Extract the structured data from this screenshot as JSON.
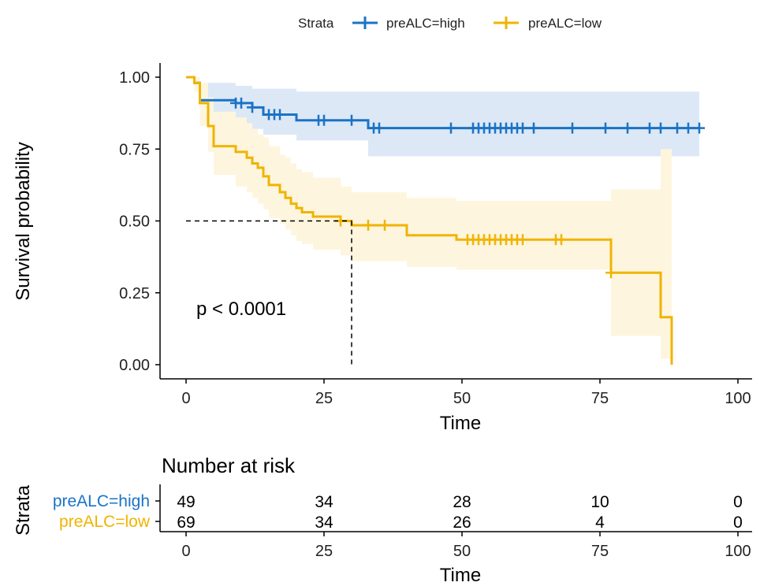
{
  "chart_data": {
    "type": "line",
    "subtype": "kaplan-meier",
    "title": "",
    "xlabel": "Time",
    "ylabel": "Survival probability",
    "xlim": [
      0,
      100
    ],
    "ylim": [
      0,
      1
    ],
    "x_ticks": [
      0,
      25,
      50,
      75,
      100
    ],
    "y_ticks": [
      0,
      0.25,
      0.5,
      0.75,
      1.0
    ],
    "y_tick_labels": [
      "0.00",
      "0.25",
      "0.50",
      "0.75",
      "1.00"
    ],
    "grid": false,
    "legend": {
      "title": "Strata",
      "placement": "top"
    },
    "annotation": "p < 0.0001",
    "median_line": {
      "y": 0.5,
      "x": 30
    },
    "series": [
      {
        "name": "preALC=high",
        "color": "#1a73c6",
        "band_color": "#dce8f6",
        "steps": [
          [
            0,
            1.0
          ],
          [
            1.5,
            0.98
          ],
          [
            2.5,
            0.92
          ],
          [
            9,
            0.91
          ],
          [
            12,
            0.895
          ],
          [
            14,
            0.87
          ],
          [
            20,
            0.85
          ],
          [
            33,
            0.823
          ],
          [
            93,
            0.823
          ]
        ],
        "ci_steps": [
          [
            0,
            1.0,
            1.0
          ],
          [
            1.5,
            1.0,
            0.95
          ],
          [
            2.5,
            0.98,
            0.85
          ],
          [
            9,
            0.97,
            0.83
          ],
          [
            12,
            0.96,
            0.82
          ],
          [
            14,
            0.96,
            0.8
          ],
          [
            20,
            0.95,
            0.78
          ],
          [
            33,
            0.95,
            0.725
          ],
          [
            93,
            0.95,
            0.725
          ]
        ],
        "censor_x": [
          9,
          10,
          12,
          15,
          16,
          17,
          24,
          25,
          30,
          34,
          35,
          48,
          52,
          53,
          54,
          55,
          56,
          57,
          58,
          59,
          60,
          61,
          63,
          70,
          76,
          80,
          84,
          86,
          89,
          91,
          93
        ]
      },
      {
        "name": "preALC=low",
        "color": "#f0b400",
        "band_color": "#fdf5de",
        "steps": [
          [
            0,
            1.0
          ],
          [
            1.5,
            0.98
          ],
          [
            2.5,
            0.91
          ],
          [
            4,
            0.83
          ],
          [
            5,
            0.76
          ],
          [
            9,
            0.74
          ],
          [
            11,
            0.72
          ],
          [
            12,
            0.7
          ],
          [
            13,
            0.685
          ],
          [
            14,
            0.655
          ],
          [
            15,
            0.625
          ],
          [
            17,
            0.6
          ],
          [
            18,
            0.58
          ],
          [
            19,
            0.56
          ],
          [
            20,
            0.545
          ],
          [
            21,
            0.53
          ],
          [
            23,
            0.515
          ],
          [
            28,
            0.5
          ],
          [
            30,
            0.485
          ],
          [
            40,
            0.45
          ],
          [
            49,
            0.435
          ],
          [
            77,
            0.32
          ],
          [
            86,
            0.165
          ],
          [
            88,
            0.0
          ]
        ],
        "ci_steps": [
          [
            0,
            1.0,
            1.0
          ],
          [
            1.5,
            1.0,
            0.95
          ],
          [
            2.5,
            0.98,
            0.83
          ],
          [
            4,
            0.93,
            0.74
          ],
          [
            5,
            0.88,
            0.66
          ],
          [
            9,
            0.86,
            0.62
          ],
          [
            11,
            0.84,
            0.6
          ],
          [
            12,
            0.82,
            0.58
          ],
          [
            13,
            0.8,
            0.56
          ],
          [
            14,
            0.79,
            0.54
          ],
          [
            15,
            0.76,
            0.51
          ],
          [
            17,
            0.73,
            0.49
          ],
          [
            18,
            0.72,
            0.47
          ],
          [
            19,
            0.7,
            0.45
          ],
          [
            20,
            0.68,
            0.43
          ],
          [
            21,
            0.67,
            0.42
          ],
          [
            23,
            0.65,
            0.4
          ],
          [
            28,
            0.62,
            0.38
          ],
          [
            30,
            0.6,
            0.36
          ],
          [
            40,
            0.58,
            0.34
          ],
          [
            49,
            0.57,
            0.33
          ],
          [
            77,
            0.61,
            0.1
          ],
          [
            86,
            0.75,
            0.02
          ],
          [
            88,
            0.75,
            0.02
          ]
        ],
        "censor_x": [
          28,
          33,
          36,
          51,
          52,
          53,
          54,
          55,
          56,
          57,
          58,
          59,
          60,
          61,
          67,
          68,
          77
        ]
      }
    ],
    "risk_table": {
      "title": "Number at risk",
      "ylabel": "Strata",
      "xlabel": "Time",
      "times": [
        0,
        25,
        50,
        75,
        100
      ],
      "rows": [
        {
          "name": "preALC=high",
          "counts": [
            49,
            34,
            28,
            10,
            0
          ]
        },
        {
          "name": "preALC=low",
          "counts": [
            69,
            34,
            26,
            4,
            0
          ]
        }
      ]
    }
  }
}
